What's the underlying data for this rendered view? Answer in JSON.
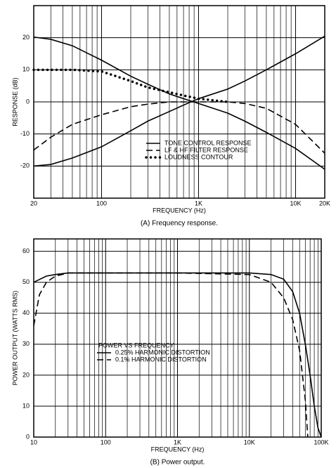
{
  "chart_data": [
    {
      "type": "line",
      "log_x": true,
      "grid": true,
      "xlabel": "FREQUENCY (Hz)",
      "ylabel": "RESPONSE (dB)",
      "caption": "(A) Frequency response.",
      "xlim": [
        20,
        20000
      ],
      "ylim": [
        -30,
        30
      ],
      "xticks": [
        20,
        100,
        {
          "value": 1000,
          "label": "1K"
        },
        {
          "value": 10000,
          "label": "10K"
        },
        {
          "value": 20000,
          "label": "20K"
        }
      ],
      "xgrid": [
        30,
        40,
        50,
        60,
        70,
        80,
        90,
        200,
        300,
        400,
        500,
        600,
        700,
        800,
        900,
        2000,
        3000,
        4000,
        5000,
        6000,
        7000,
        8000,
        9000
      ],
      "yticks": [
        -20,
        -10,
        0,
        10,
        20
      ],
      "x": [
        20,
        30,
        50,
        100,
        200,
        300,
        500,
        700,
        1000,
        2000,
        3000,
        5000,
        10000,
        20000
      ],
      "series": [
        {
          "name": "TONE CONTROL RESPONSE",
          "color": "#000000",
          "dash": "solid",
          "values": [
            20.2,
            19.5,
            17.5,
            13,
            8,
            5.5,
            2.5,
            1,
            -0.5,
            -3.5,
            -6,
            -9.5,
            -14.5,
            -21
          ]
        },
        {
          "color": "#000000",
          "dash": "solid",
          "values": [
            -20,
            -19.5,
            -17.5,
            -14,
            -9,
            -6,
            -3,
            -1,
            1,
            4,
            6.5,
            10,
            15,
            20.5
          ]
        },
        {
          "name": "LF & HF FILTER RESPONSE",
          "color": "#000000",
          "dash": "dashed",
          "values": [
            -15,
            -11,
            -7,
            -4,
            -1.5,
            -0.7,
            0,
            0,
            0,
            0,
            -0.5,
            -2,
            -7,
            -16
          ]
        },
        {
          "name": "LOUDNESS CONTOUR",
          "color": "#000000",
          "dash": "dotted",
          "values": [
            10,
            10,
            10,
            9.5,
            6.5,
            4.5,
            3,
            2,
            1,
            0,
            null,
            null,
            null,
            null
          ]
        }
      ]
    },
    {
      "type": "line",
      "log_x": true,
      "grid": true,
      "xlabel": "FREQUENCY (Hz)",
      "ylabel": "POWER OUTPUT (WATTS RMS)",
      "caption": "(B) Power output.",
      "legend_title": "POWER VS FREQUENCY",
      "xlim": [
        10,
        100000
      ],
      "ylim": [
        0,
        64
      ],
      "xticks": [
        10,
        100,
        {
          "value": 1000,
          "label": "1K"
        },
        {
          "value": 10000,
          "label": "10K"
        },
        {
          "value": 100000,
          "label": "100K"
        }
      ],
      "xgrid": [
        20,
        30,
        40,
        50,
        60,
        70,
        80,
        90,
        200,
        300,
        400,
        500,
        600,
        700,
        800,
        900,
        2000,
        3000,
        4000,
        5000,
        6000,
        7000,
        8000,
        9000,
        20000,
        30000,
        40000,
        50000,
        60000,
        70000,
        80000,
        90000
      ],
      "yticks": [
        0,
        10,
        20,
        30,
        40,
        50,
        60
      ],
      "series": [
        {
          "name": "0.25% HARMONIC DISTORTION",
          "color": "#000000",
          "dash": "solid",
          "x": [
            10,
            15,
            20,
            30,
            50,
            100,
            1000,
            10000,
            20000,
            30000,
            40000,
            50000,
            60000,
            70000,
            80000,
            90000,
            100000
          ],
          "values": [
            50,
            52,
            52.5,
            53,
            53,
            53,
            53,
            53,
            52.5,
            51,
            47,
            40,
            30,
            20,
            10,
            3,
            0
          ]
        },
        {
          "name": "0.1% HARMONIC DISTORTION",
          "color": "#000000",
          "dash": "dashed",
          "x": [
            10,
            12,
            15,
            20,
            30,
            100,
            1000,
            10000,
            20000,
            30000,
            40000,
            50000,
            60000,
            65000
          ],
          "values": [
            36,
            46,
            50,
            52,
            53,
            53,
            53,
            52.5,
            50,
            45,
            38,
            28,
            12,
            0
          ]
        }
      ]
    }
  ]
}
